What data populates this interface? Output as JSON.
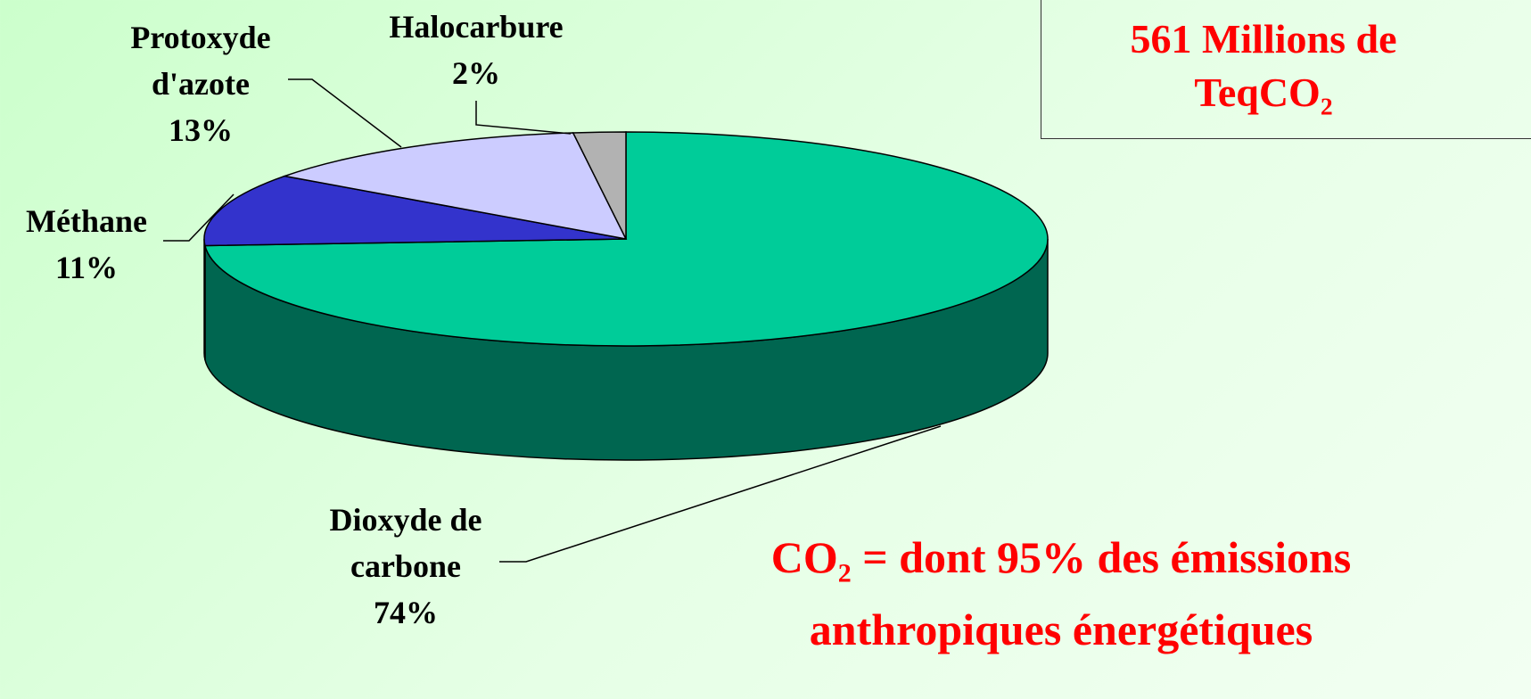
{
  "chart_data": {
    "type": "pie3d",
    "categories": [
      "Dioxyde de carbone",
      "Méthane",
      "Protoxyde d'azote",
      "Halocarbure"
    ],
    "values": [
      74,
      11,
      13,
      2
    ],
    "value_labels": [
      "74%",
      "11%",
      "13%",
      "2%"
    ],
    "colors": [
      "#00cc99",
      "#3333cc",
      "#ccccff",
      "#b2b2b2"
    ],
    "side_colors": [
      "#006650",
      "#1a1a80",
      "#8080b0",
      "#707070"
    ],
    "box_text": {
      "line1": "561 Millions de",
      "line2": "TeqCO",
      "line2_sub": "2"
    },
    "note": {
      "start": "CO",
      "sub": "2",
      "rest": "= dont 95% des émissions",
      "line2": "anthropiques énergétiques"
    }
  }
}
